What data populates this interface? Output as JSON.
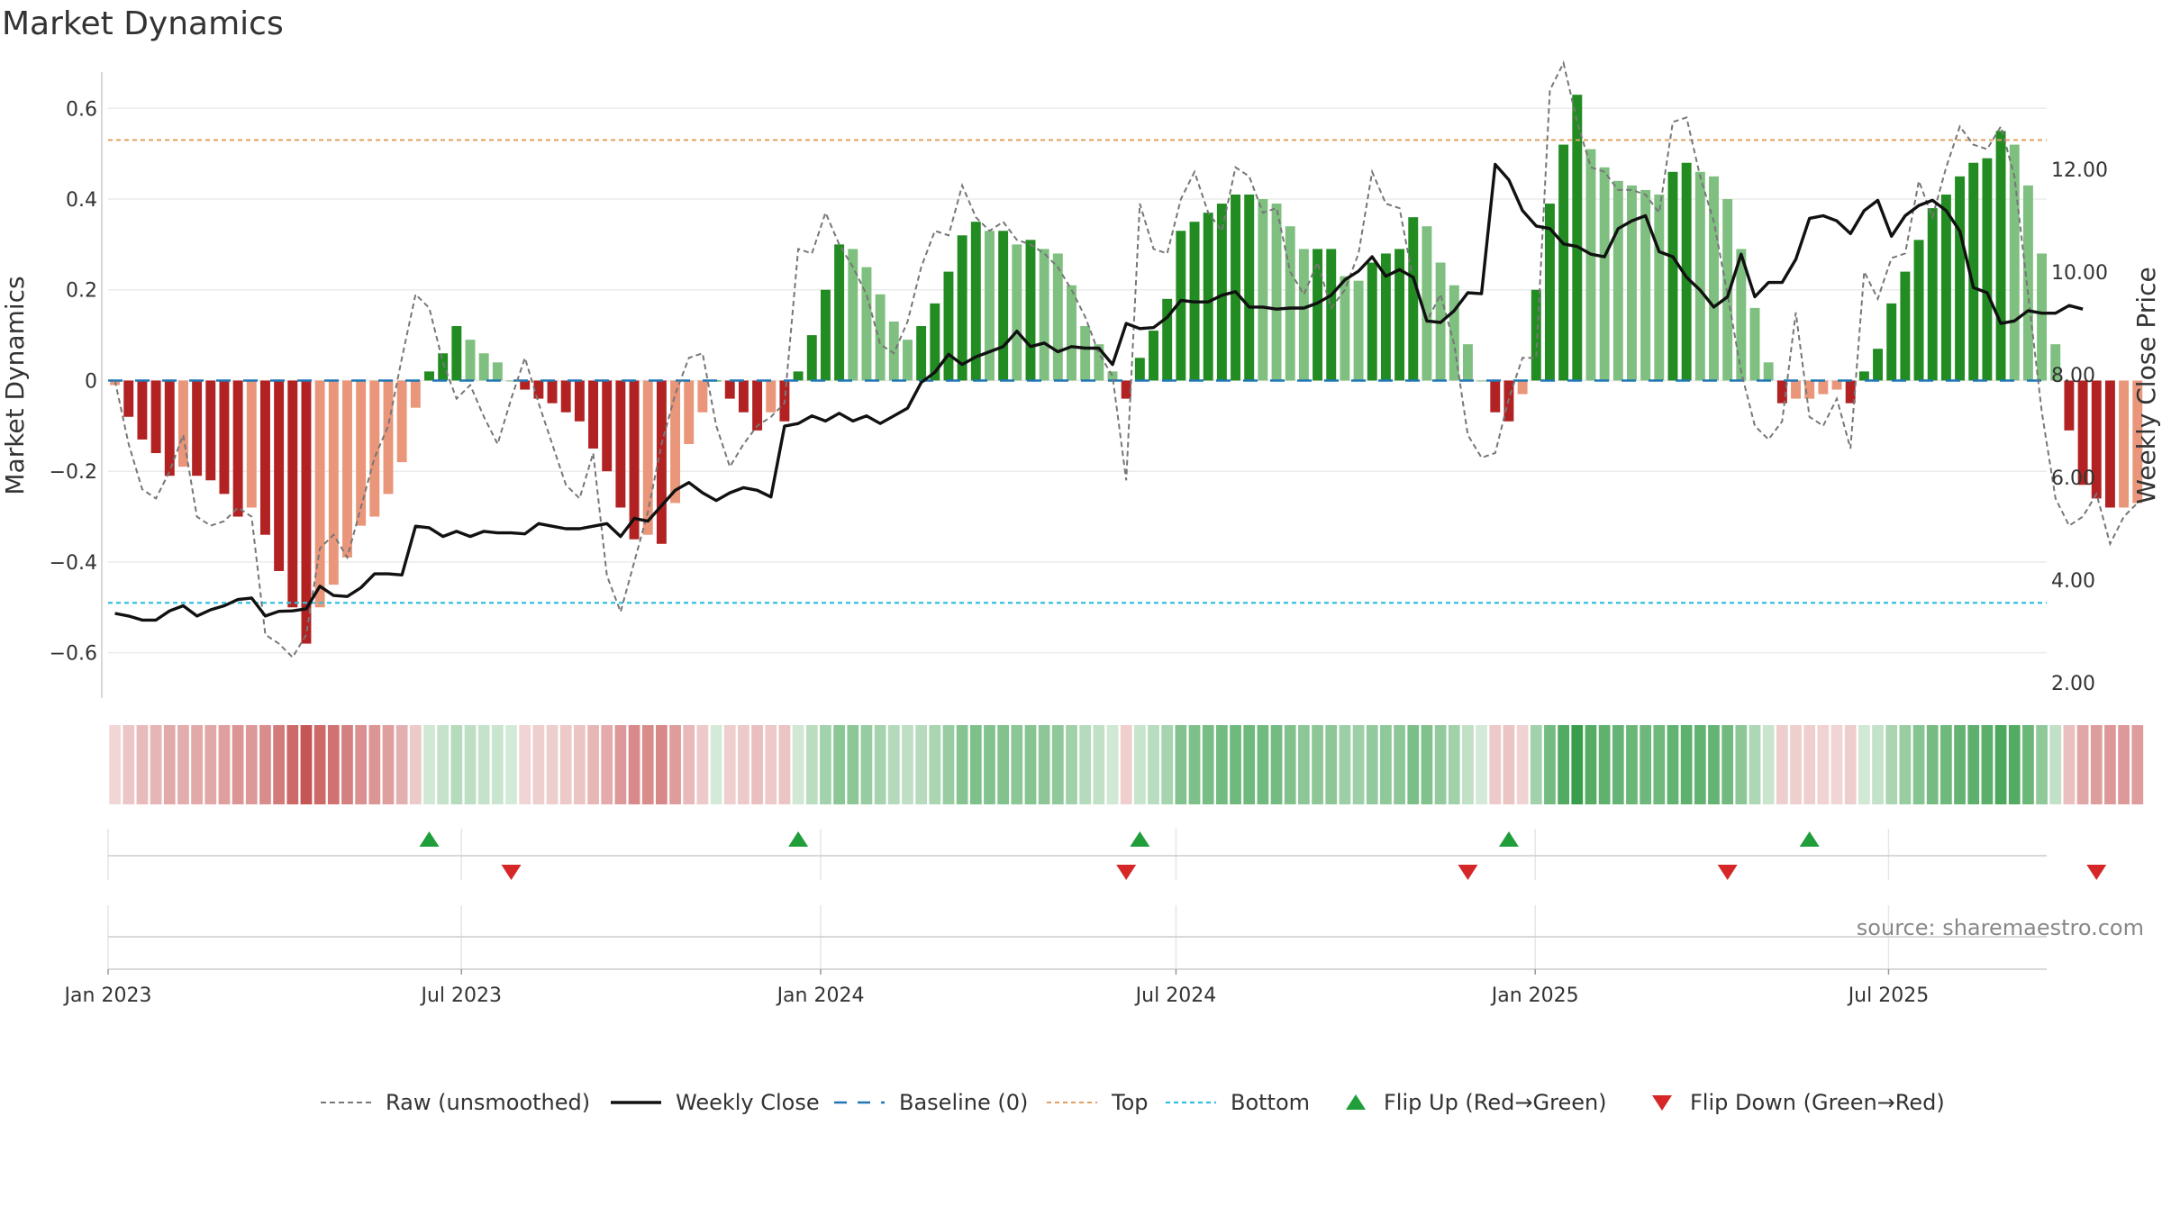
{
  "chart_data": {
    "type": "bar",
    "title": "Market Dynamics",
    "ylabel_left": "Market Dynamics",
    "ylabel_right": "Weekly Close Price",
    "ylim_left": [
      -0.7,
      0.68
    ],
    "ylim_right": [
      1.7,
      13.9
    ],
    "yticks_left": [
      "0.6",
      "0.4",
      "0.2",
      "0",
      "−0.2",
      "−0.4",
      "−0.6"
    ],
    "yticks_left_values": [
      0.6,
      0.4,
      0.2,
      0,
      -0.2,
      -0.4,
      -0.6
    ],
    "yticks_right": [
      "12.00",
      "10.00",
      "8.00",
      "6.00",
      "4.00",
      "2.00"
    ],
    "yticks_right_values": [
      12,
      10,
      8,
      6,
      4,
      2
    ],
    "xticks": [
      "Jan 2023",
      "Jul 2023",
      "Jan 2024",
      "Jul 2024",
      "Jan 2025",
      "Jul 2025"
    ],
    "x_start": "2023-01-01",
    "x_end": "2025-09-20",
    "top_level": 0.53,
    "bottom_level": -0.49,
    "baseline": 0,
    "smoothed": [
      -0.01,
      -0.08,
      -0.13,
      -0.16,
      -0.21,
      -0.19,
      -0.21,
      -0.22,
      -0.25,
      -0.3,
      -0.28,
      -0.34,
      -0.42,
      -0.5,
      -0.58,
      -0.5,
      -0.45,
      -0.39,
      -0.32,
      -0.3,
      -0.25,
      -0.18,
      -0.06,
      0.02,
      0.06,
      0.12,
      0.09,
      0.06,
      0.04,
      0.0,
      -0.02,
      -0.04,
      -0.05,
      -0.07,
      -0.09,
      -0.15,
      -0.2,
      -0.28,
      -0.35,
      -0.34,
      -0.36,
      -0.27,
      -0.14,
      -0.07,
      0.0,
      -0.04,
      -0.07,
      -0.11,
      -0.07,
      -0.09,
      0.02,
      0.1,
      0.2,
      0.3,
      0.29,
      0.25,
      0.19,
      0.13,
      0.09,
      0.12,
      0.17,
      0.24,
      0.32,
      0.35,
      0.33,
      0.33,
      0.3,
      0.31,
      0.29,
      0.28,
      0.21,
      0.12,
      0.08,
      0.02,
      -0.04,
      0.05,
      0.11,
      0.18,
      0.33,
      0.35,
      0.37,
      0.39,
      0.41,
      0.41,
      0.4,
      0.39,
      0.34,
      0.29,
      0.29,
      0.29,
      0.23,
      0.22,
      0.26,
      0.28,
      0.29,
      0.36,
      0.34,
      0.26,
      0.21,
      0.08,
      0.0,
      -0.07,
      -0.09,
      -0.03,
      0.2,
      0.39,
      0.52,
      0.63,
      0.51,
      0.47,
      0.44,
      0.43,
      0.42,
      0.41,
      0.46,
      0.48,
      0.46,
      0.45,
      0.4,
      0.29,
      0.16,
      0.04,
      -0.05,
      -0.04,
      -0.04,
      -0.03,
      -0.02,
      -0.05,
      0.02,
      0.07,
      0.17,
      0.24,
      0.31,
      0.38,
      0.41,
      0.45,
      0.48,
      0.49,
      0.55,
      0.52,
      0.43,
      0.28,
      0.08,
      -0.11,
      -0.23,
      -0.26,
      -0.28,
      -0.28,
      -0.27
    ],
    "raw": [
      0.0,
      -0.14,
      -0.24,
      -0.26,
      -0.2,
      -0.12,
      -0.3,
      -0.32,
      -0.31,
      -0.28,
      -0.3,
      -0.56,
      -0.58,
      -0.61,
      -0.56,
      -0.37,
      -0.34,
      -0.39,
      -0.28,
      -0.17,
      -0.1,
      0.05,
      0.19,
      0.16,
      0.04,
      -0.04,
      -0.01,
      -0.08,
      -0.14,
      -0.04,
      0.05,
      -0.05,
      -0.14,
      -0.23,
      -0.26,
      -0.16,
      -0.43,
      -0.51,
      -0.4,
      -0.29,
      -0.14,
      -0.03,
      0.05,
      0.06,
      -0.1,
      -0.19,
      -0.14,
      -0.1,
      -0.08,
      -0.05,
      0.29,
      0.28,
      0.37,
      0.3,
      0.25,
      0.19,
      0.08,
      0.06,
      0.13,
      0.25,
      0.33,
      0.32,
      0.43,
      0.36,
      0.33,
      0.35,
      0.31,
      0.3,
      0.28,
      0.25,
      0.2,
      0.14,
      0.06,
      0.01,
      -0.22,
      0.39,
      0.29,
      0.28,
      0.4,
      0.46,
      0.37,
      0.33,
      0.47,
      0.45,
      0.37,
      0.38,
      0.24,
      0.19,
      0.26,
      0.16,
      0.2,
      0.28,
      0.46,
      0.39,
      0.38,
      0.22,
      0.13,
      0.19,
      0.08,
      -0.12,
      -0.17,
      -0.16,
      -0.04,
      0.05,
      0.05,
      0.64,
      0.7,
      0.57,
      0.47,
      0.46,
      0.42,
      0.42,
      0.41,
      0.37,
      0.57,
      0.58,
      0.45,
      0.35,
      0.19,
      0.02,
      -0.1,
      -0.13,
      -0.09,
      0.15,
      -0.08,
      -0.1,
      -0.04,
      -0.15,
      0.24,
      0.18,
      0.27,
      0.28,
      0.44,
      0.36,
      0.47,
      0.56,
      0.52,
      0.51,
      0.56,
      0.45,
      0.19,
      -0.07,
      -0.26,
      -0.32,
      -0.3,
      -0.25,
      -0.36,
      -0.3,
      -0.27
    ],
    "close": [
      3.35,
      3.3,
      3.22,
      3.22,
      3.4,
      3.5,
      3.3,
      3.42,
      3.5,
      3.62,
      3.65,
      3.3,
      3.39,
      3.4,
      3.44,
      3.88,
      3.7,
      3.68,
      3.85,
      4.12,
      4.12,
      4.1,
      5.05,
      5.02,
      4.85,
      4.95,
      4.85,
      4.95,
      4.92,
      4.92,
      4.9,
      5.1,
      5.05,
      5.0,
      5.0,
      5.05,
      5.1,
      4.85,
      5.2,
      5.15,
      5.45,
      5.75,
      5.9,
      5.7,
      5.55,
      5.7,
      5.8,
      5.75,
      5.62,
      7.0,
      7.05,
      7.2,
      7.1,
      7.25,
      7.1,
      7.2,
      7.05,
      7.2,
      7.35,
      7.85,
      8.05,
      8.4,
      8.2,
      8.35,
      8.45,
      8.55,
      8.85,
      8.55,
      8.62,
      8.45,
      8.55,
      8.52,
      8.52,
      8.2,
      9.0,
      8.9,
      8.92,
      9.12,
      9.45,
      9.42,
      9.42,
      9.55,
      9.62,
      9.32,
      9.32,
      9.28,
      9.3,
      9.3,
      9.4,
      9.55,
      9.85,
      10.02,
      10.3,
      9.92,
      10.05,
      9.9,
      9.05,
      9.02,
      9.25,
      9.6,
      9.58,
      12.1,
      11.8,
      11.2,
      10.9,
      10.85,
      10.55,
      10.5,
      10.35,
      10.3,
      10.85,
      11.0,
      11.1,
      10.4,
      10.3,
      9.9,
      9.65,
      9.32,
      9.52,
      10.35,
      9.52,
      9.8,
      9.8,
      10.25,
      11.05,
      11.1,
      11.0,
      10.75,
      11.2,
      11.4,
      10.7,
      11.1,
      11.3,
      11.4,
      11.2,
      10.8,
      9.7,
      9.6,
      9.0,
      9.05,
      9.25,
      9.2,
      9.2,
      9.35,
      9.28
    ],
    "flip_up_weeks": [
      23,
      50,
      75,
      102,
      124
    ],
    "flip_down_weeks": [
      29,
      74,
      99,
      118,
      145
    ],
    "colors": {
      "strong_red": "#b22222",
      "light_red": "#e9967a",
      "strong_green": "#228b22",
      "light_green": "#7fbf7f",
      "top_line": "#e0a060",
      "bottom_line": "#30c0e0",
      "baseline": "#1f77b4",
      "close_line": "#111111",
      "raw_line": "#777777",
      "flip_up": "#1f9e3a",
      "flip_down": "#d62728"
    },
    "legend": [
      {
        "label": "Raw (unsmoothed)",
        "style": "dashed-gray"
      },
      {
        "label": "Weekly Close",
        "style": "solid-black"
      },
      {
        "label": "Baseline (0)",
        "style": "dashed-blue"
      },
      {
        "label": "Top",
        "style": "dotted-orange"
      },
      {
        "label": "Bottom",
        "style": "dotted-cyan"
      },
      {
        "label": "Flip Up (Red→Green)",
        "style": "triangle-up"
      },
      {
        "label": "Flip Down (Green→Red)",
        "style": "triangle-down"
      }
    ],
    "legend_position": "bottom-center",
    "source": "source: sharemaestro.com"
  }
}
